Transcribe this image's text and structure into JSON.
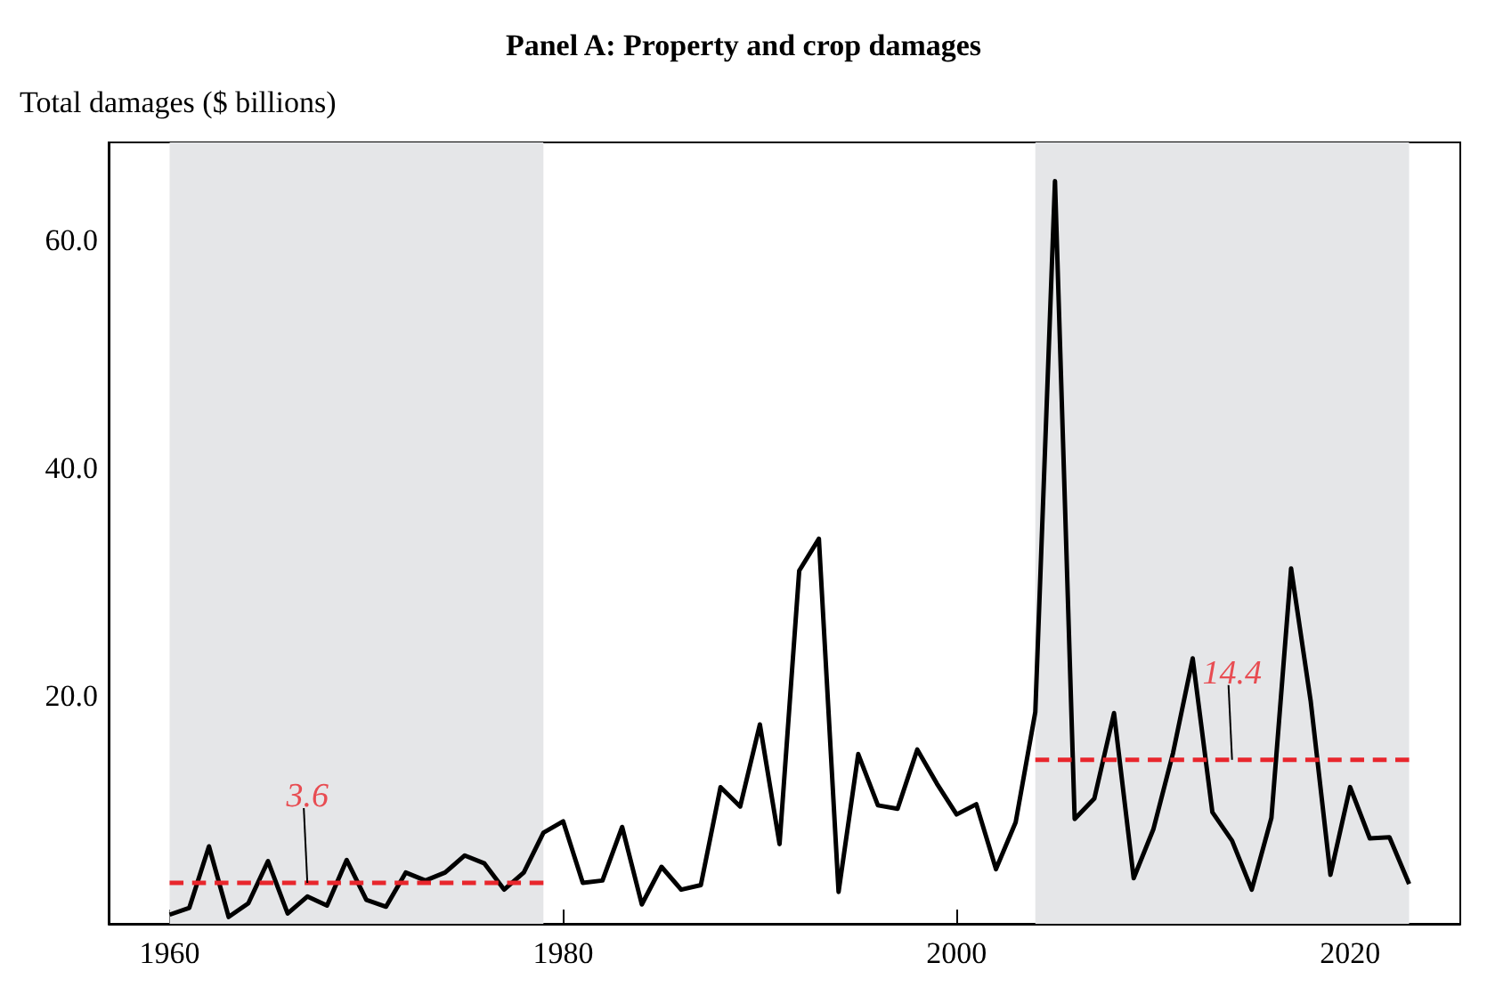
{
  "chart_data": {
    "type": "line",
    "title": "Panel A: Property and crop damages",
    "ylabel": "Total damages ($ billions)",
    "x": [
      1960,
      1961,
      1962,
      1963,
      1964,
      1965,
      1966,
      1967,
      1968,
      1969,
      1970,
      1971,
      1972,
      1973,
      1974,
      1975,
      1976,
      1977,
      1978,
      1979,
      1980,
      1981,
      1982,
      1983,
      1984,
      1985,
      1986,
      1987,
      1988,
      1989,
      1990,
      1991,
      1992,
      1993,
      1994,
      1995,
      1996,
      1997,
      1998,
      1999,
      2000,
      2001,
      2002,
      2003,
      2004,
      2005,
      2006,
      2007,
      2008,
      2009,
      2010,
      2011,
      2012,
      2013,
      2014,
      2015,
      2016,
      2017,
      2018,
      2019,
      2020,
      2021,
      2022,
      2023
    ],
    "series": [
      {
        "color": "#000000",
        "values": [
          0.8,
          1.4,
          6.8,
          0.6,
          1.8,
          5.5,
          0.9,
          2.4,
          1.6,
          5.6,
          2.1,
          1.5,
          4.5,
          3.8,
          4.5,
          6.0,
          5.3,
          3.0,
          4.5,
          8.0,
          9.0,
          3.6,
          3.8,
          8.5,
          1.7,
          5.0,
          3.0,
          3.4,
          12.0,
          10.3,
          17.5,
          7.0,
          31.0,
          33.8,
          2.8,
          14.9,
          10.4,
          10.1,
          15.3,
          12.3,
          9.6,
          10.5,
          4.8,
          8.9,
          18.6,
          65.2,
          9.2,
          11.0,
          18.5,
          4.0,
          8.3,
          15.0,
          23.3,
          9.8,
          7.3,
          3.0,
          9.3,
          31.2,
          19.5,
          4.3,
          12.0,
          7.5,
          7.6,
          3.5
        ]
      },
      {
        "color": "#e8262c",
        "line_style": "dashed",
        "x": [
          1960,
          1979
        ],
        "values": [
          3.6,
          3.6
        ]
      },
      {
        "color": "#e8262c",
        "line_style": "dashed",
        "x": [
          2004,
          2023
        ],
        "values": [
          14.4,
          14.4
        ]
      }
    ],
    "bands": [
      {
        "axis": "x",
        "from": 1960,
        "to": 1979,
        "color": "#e5e6e8"
      },
      {
        "axis": "x",
        "from": 2004,
        "to": 2023,
        "color": "#e5e6e8"
      }
    ],
    "annotations": [
      {
        "text": "3.6",
        "x": 1967,
        "y": 3.6
      },
      {
        "text": "14.4",
        "x": 2014,
        "y": 14.4
      }
    ],
    "xlim": [
      1956.9,
      2025.6
    ],
    "ylim": [
      0,
      68.6
    ],
    "xticks": [
      1960,
      1980,
      2000,
      2020
    ],
    "yticks": [
      {
        "value": 20,
        "label": "20.0"
      },
      {
        "value": 40,
        "label": "40.0"
      },
      {
        "value": 60,
        "label": "60.0"
      }
    ],
    "grid": false,
    "marker": "none",
    "line_style": "solid"
  }
}
